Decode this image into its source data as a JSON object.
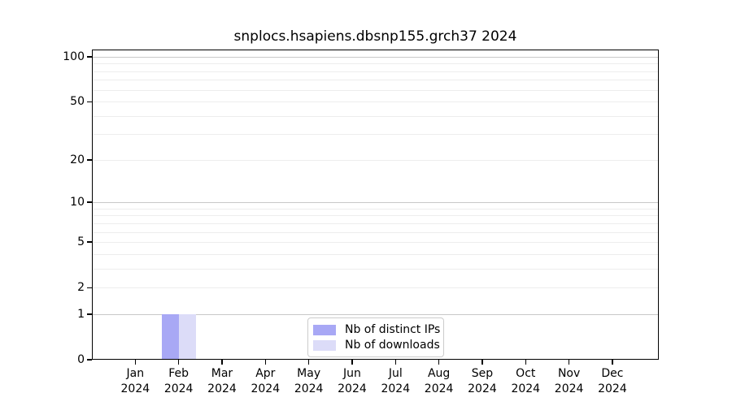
{
  "chart_data": {
    "type": "bar",
    "title": "snplocs.hsapiens.dbsnp155.grch37 2024",
    "year": "2024",
    "categories": [
      "Jan",
      "Feb",
      "Mar",
      "Apr",
      "May",
      "Jun",
      "Jul",
      "Aug",
      "Sep",
      "Oct",
      "Nov",
      "Dec"
    ],
    "series": [
      {
        "name": "Nb of distinct IPs",
        "color": "#a8a8f5",
        "values": [
          0,
          1,
          0,
          0,
          0,
          0,
          0,
          0,
          0,
          0,
          0,
          0
        ]
      },
      {
        "name": "Nb of downloads",
        "color": "#dcdcf8",
        "values": [
          0,
          1,
          0,
          0,
          0,
          0,
          0,
          0,
          0,
          0,
          0,
          0
        ]
      }
    ],
    "yscale": "log1p",
    "yticks": [
      0,
      1,
      2,
      5,
      10,
      20,
      50,
      100
    ],
    "ylim": [
      0,
      111
    ],
    "grid": {
      "on": true,
      "major_lines": [
        1,
        10,
        100
      ],
      "minor_lines": [
        2,
        3,
        4,
        5,
        6,
        7,
        8,
        9,
        20,
        30,
        40,
        50,
        60,
        70,
        80,
        90
      ],
      "major_color": "#c8c8c8",
      "minor_color": "#ededed"
    },
    "legend_position": "bottom-center",
    "axis_color": "#000000",
    "background_color": "#ffffff"
  }
}
